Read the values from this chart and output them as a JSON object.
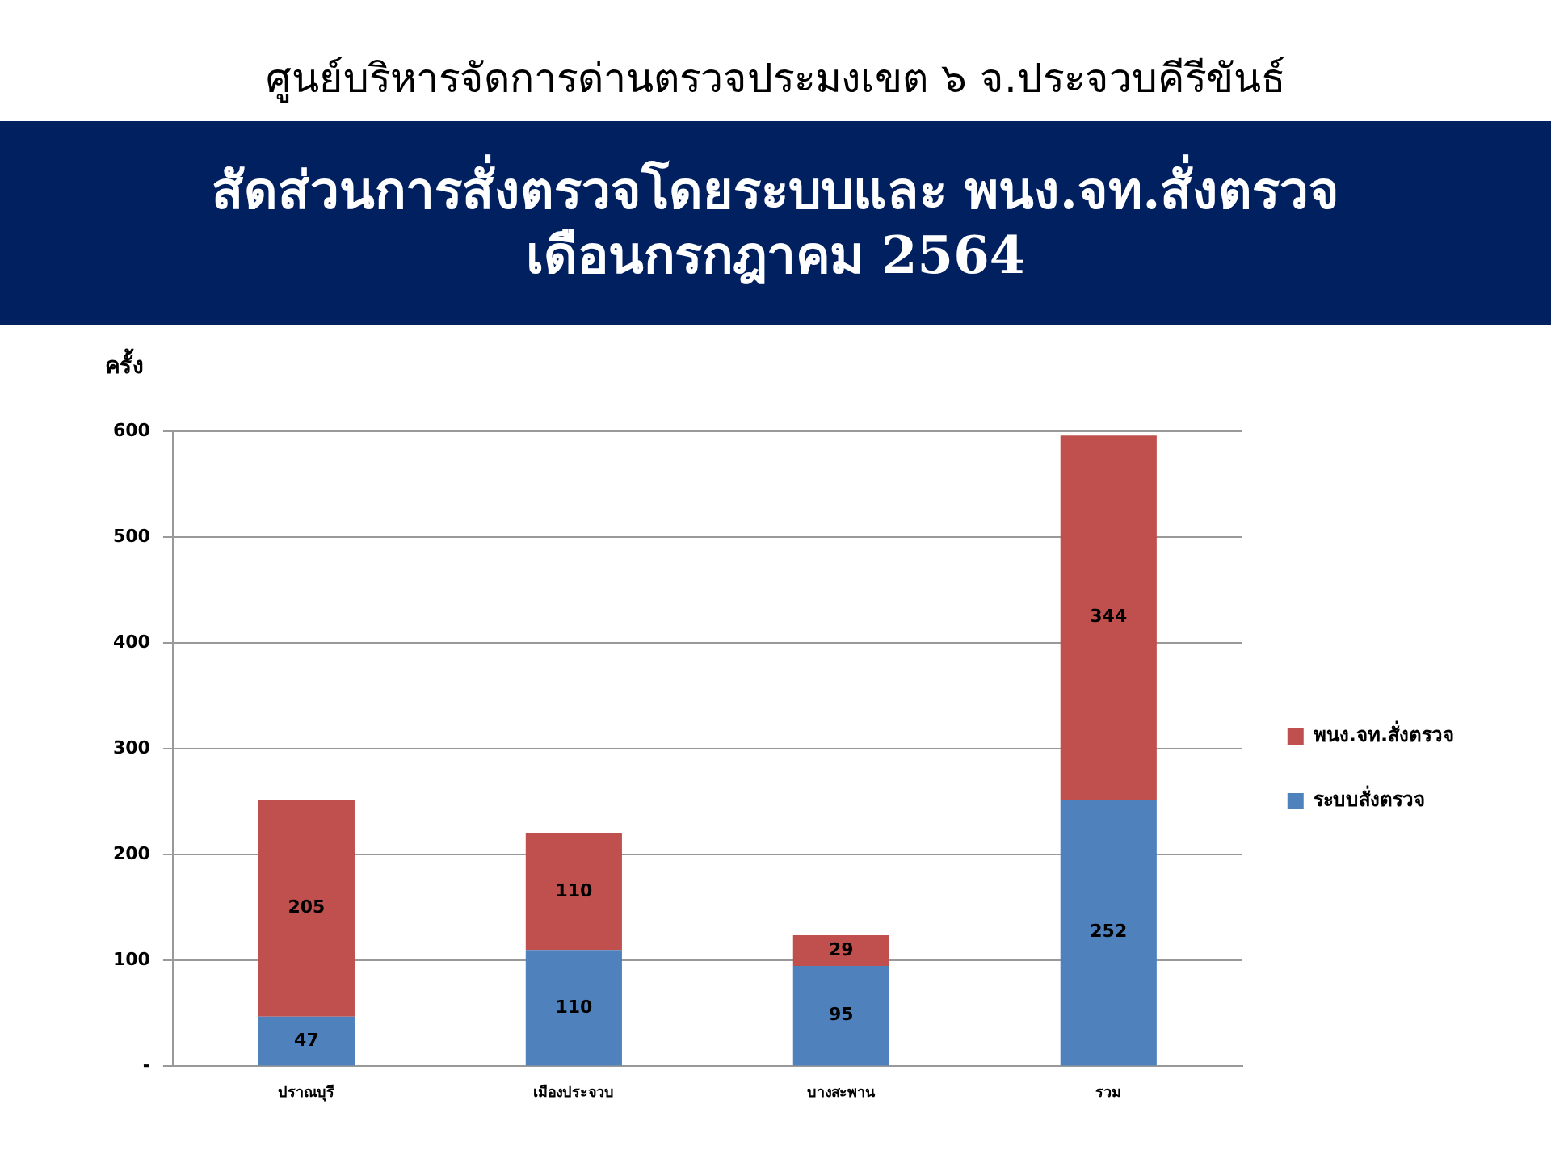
{
  "chart_data": {
    "type": "bar",
    "title": "ศูนย์บริหารจัดการด่านตรวจประมงเขต ๖ จ.ประจวบคีรีขันธ์",
    "subtitle": "สัดส่วนการสั่งตรวจโดยระบบและ พนง.จท.สั่งตรวจ\nเดือนกรกฎาคม 2564",
    "ylabel": "ครั้ง",
    "categories": [
      "ปราณบุรี",
      "เมืองประจวบ",
      "บางสะพาน",
      "รวม"
    ],
    "series": [
      {
        "name": "ระบบสั่งตรวจ",
        "color": "#4f81bd",
        "values": [
          47,
          110,
          95,
          252
        ]
      },
      {
        "name": "พนง.จท.สั่งตรวจ",
        "color": "#c0504d",
        "values": [
          205,
          110,
          29,
          344
        ]
      }
    ],
    "stacked": true,
    "ylim": [
      0,
      600
    ],
    "yticks": [
      {
        "value": 0,
        "label": "-"
      },
      100,
      200,
      300,
      400,
      500,
      600
    ],
    "grid": "y",
    "legend": "right",
    "data_labels": true
  }
}
